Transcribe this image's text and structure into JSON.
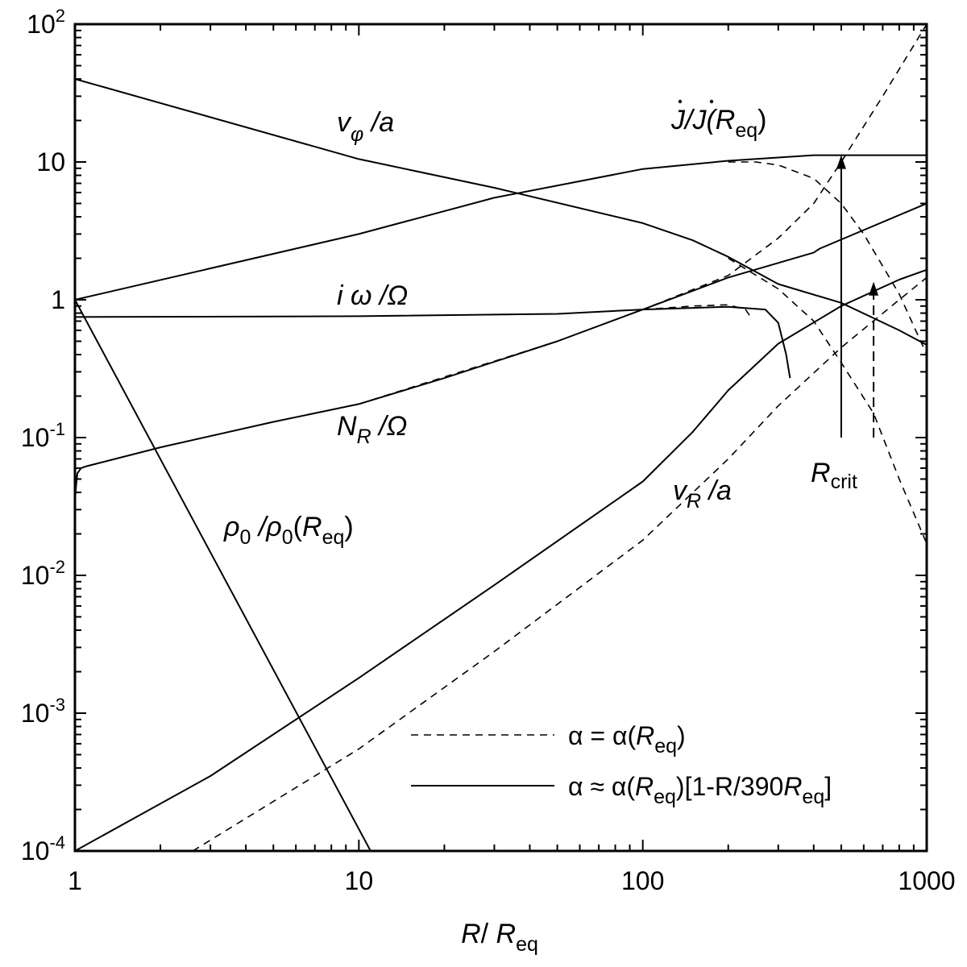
{
  "chart_data": {
    "type": "line",
    "title": "",
    "x_scale": "log",
    "y_scale": "log",
    "xlim": [
      1,
      1000
    ],
    "ylim": [
      0.0001,
      100
    ],
    "xlabel": {
      "main": "R",
      "slash": "/ ",
      "base": "R",
      "sub": "eq"
    },
    "x_ticks": [
      {
        "value": 1,
        "label": "1"
      },
      {
        "value": 10,
        "label": "10"
      },
      {
        "value": 100,
        "label": "100"
      },
      {
        "value": 1000,
        "label": "1000"
      }
    ],
    "y_ticks": [
      {
        "value": 0.0001,
        "base": "10",
        "exp": "-4",
        "plain": ""
      },
      {
        "value": 0.001,
        "base": "10",
        "exp": "-3",
        "plain": ""
      },
      {
        "value": 0.01,
        "base": "10",
        "exp": "-2",
        "plain": ""
      },
      {
        "value": 0.1,
        "base": "10",
        "exp": "-1",
        "plain": ""
      },
      {
        "value": 1,
        "base": "",
        "exp": "",
        "plain": "1"
      },
      {
        "value": 10,
        "base": "",
        "exp": "",
        "plain": "10"
      },
      {
        "value": 100,
        "base": "10",
        "exp": "2",
        "plain": ""
      }
    ],
    "legend": {
      "placement": "bottom-right",
      "entries": [
        {
          "style": "dashed",
          "pre": "α = α(",
          "it": "R",
          "sub": "eq",
          "post": ")"
        },
        {
          "style": "solid",
          "pre": "α ≈ α(",
          "it": "R",
          "sub": "eq",
          "post": ")[1-R/390",
          "it2": "R",
          "sub2": "eq",
          "post2": "]"
        }
      ]
    },
    "curve_labels": {
      "vphi": {
        "num": "v",
        "num_sub": "φ",
        "rest": " /a"
      },
      "jdot": {
        "text": "J/J(",
        "it": "R",
        "sub": "eq",
        "post": ")"
      },
      "iomega": {
        "text": "i ω /Ω"
      },
      "nr": {
        "num": "N",
        "num_sub": "R",
        "rest": " /Ω"
      },
      "rho": {
        "num": "ρ",
        "num_sub": "0",
        "mid": " /ρ",
        "mid_sub": "0",
        "paren": "(",
        "it": "R",
        "sub": "eq",
        "post": ")"
      },
      "vr": {
        "num": "v",
        "num_sub": "R",
        "rest": " /a"
      },
      "rcrit": {
        "num": "R",
        "num_sub": "crit"
      }
    },
    "series": [
      {
        "id": "vphi_solid",
        "style": "solid",
        "x": [
          1,
          10,
          30,
          100,
          150,
          200,
          300,
          500,
          800,
          1000
        ],
        "y": [
          40,
          10.5,
          6.5,
          3.6,
          2.7,
          2.05,
          1.3,
          0.95,
          0.6,
          0.47
        ]
      },
      {
        "id": "vphi_dashed",
        "style": "dashed",
        "x": [
          200,
          300,
          400,
          500,
          650,
          800,
          1000
        ],
        "y": [
          2.0,
          1.2,
          0.7,
          0.35,
          0.15,
          0.05,
          0.017
        ]
      },
      {
        "id": "jdot_solid",
        "style": "solid",
        "x": [
          1,
          10,
          30,
          100,
          200,
          400,
          500,
          1000
        ],
        "y": [
          1.0,
          3.0,
          5.5,
          8.9,
          10.2,
          11.2,
          11.2,
          11.2
        ]
      },
      {
        "id": "jdot_dashed",
        "style": "dashed",
        "x": [
          200,
          250,
          300,
          400,
          500,
          600,
          800,
          1000
        ],
        "y": [
          10.0,
          10.0,
          9.5,
          7.6,
          5.0,
          3.0,
          1.1,
          0.4
        ]
      },
      {
        "id": "iomega_solid",
        "style": "solid",
        "x": [
          1,
          10,
          50,
          100,
          200,
          270,
          300,
          320,
          330
        ],
        "y": [
          0.75,
          0.76,
          0.79,
          0.85,
          0.89,
          0.85,
          0.68,
          0.4,
          0.27
        ]
      },
      {
        "id": "iomega_dashed",
        "style": "dashed",
        "x": [
          100,
          150,
          200,
          230,
          240
        ],
        "y": [
          0.85,
          0.9,
          0.92,
          0.85,
          0.75
        ]
      },
      {
        "id": "nr_solid",
        "style": "solid",
        "x": [
          1,
          1.01,
          1.02,
          1.05,
          1.1,
          2,
          5,
          10,
          20,
          50,
          100,
          200,
          400,
          420,
          1000
        ],
        "y": [
          0.035,
          0.045,
          0.055,
          0.06,
          0.062,
          0.085,
          0.13,
          0.175,
          0.27,
          0.5,
          0.85,
          1.45,
          2.2,
          2.35,
          5.0
        ]
      },
      {
        "id": "nr_dashed",
        "style": "dashed",
        "x": [
          10,
          50,
          100,
          200,
          300,
          400,
          500,
          700,
          1000
        ],
        "y": [
          0.175,
          0.5,
          0.85,
          1.5,
          2.8,
          5,
          10,
          30,
          100
        ]
      },
      {
        "id": "vr_solid",
        "style": "solid",
        "x": [
          1,
          3,
          10,
          30,
          100,
          150,
          200,
          300,
          500,
          800,
          1000
        ],
        "y": [
          0.0001,
          0.00035,
          0.0018,
          0.0085,
          0.048,
          0.11,
          0.22,
          0.48,
          0.9,
          1.4,
          1.65
        ]
      },
      {
        "id": "vr_dashed",
        "style": "dashed",
        "x": [
          2.6,
          10,
          30,
          100,
          200,
          300,
          500,
          800,
          1000
        ],
        "y": [
          0.0001,
          0.00055,
          0.0028,
          0.018,
          0.07,
          0.17,
          0.45,
          1.0,
          1.45
        ]
      },
      {
        "id": "rho",
        "style": "solid",
        "x": [
          1,
          11
        ],
        "y": [
          1.0,
          0.0001
        ]
      }
    ],
    "arrows": [
      {
        "id": "rcrit_solid",
        "style": "solid",
        "x": 500,
        "y_from": 0.1,
        "y_to": 11.2
      },
      {
        "id": "rcrit_dashed",
        "style": "dashed",
        "x": 650,
        "y_from": 0.1,
        "y_to": 1.35
      }
    ]
  }
}
